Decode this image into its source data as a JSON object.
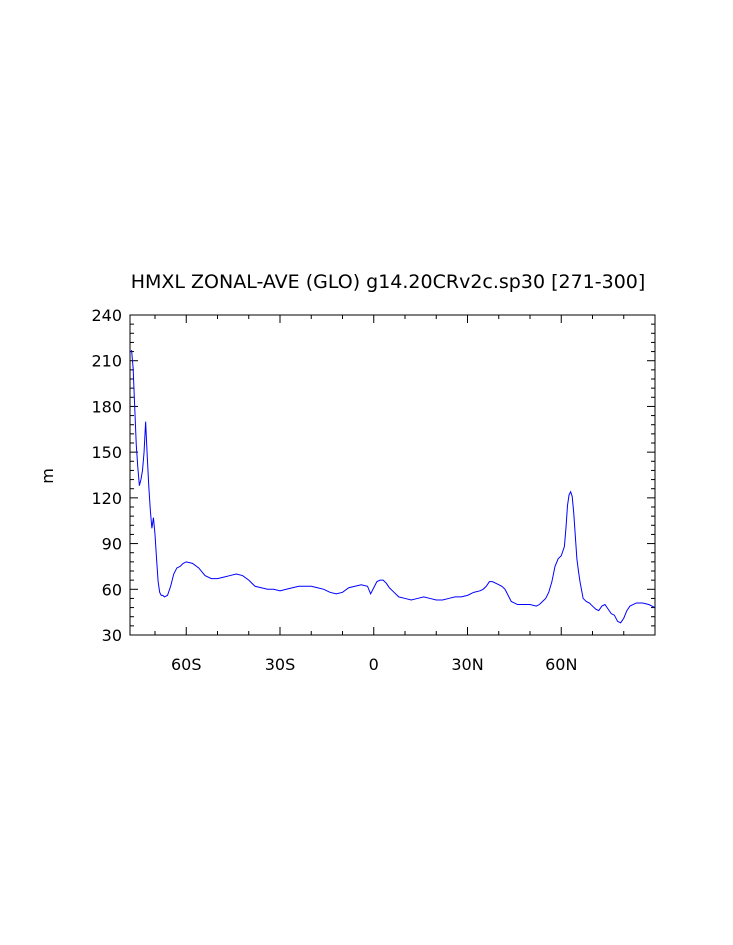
{
  "chart_data": {
    "type": "line",
    "title": "HMXL ZONAL-AVE (GLO) g14.20CRv2c.sp30 [271-300]",
    "xlabel": "",
    "ylabel": "m",
    "xlim": [
      -78,
      90
    ],
    "ylim": [
      30,
      240
    ],
    "x_ticks": [
      {
        "value": -60,
        "label": "60S"
      },
      {
        "value": -30,
        "label": "30S"
      },
      {
        "value": 0,
        "label": "0"
      },
      {
        "value": 30,
        "label": "30N"
      },
      {
        "value": 60,
        "label": "60N"
      }
    ],
    "y_ticks": [
      {
        "value": 30,
        "label": "30"
      },
      {
        "value": 60,
        "label": "60"
      },
      {
        "value": 90,
        "label": "90"
      },
      {
        "value": 120,
        "label": "120"
      },
      {
        "value": 150,
        "label": "150"
      },
      {
        "value": 180,
        "label": "180"
      },
      {
        "value": 210,
        "label": "210"
      },
      {
        "value": 240,
        "label": "240"
      }
    ],
    "grid": false,
    "line_color": "#0000ff",
    "series": [
      {
        "x": [
          -77.5,
          -77,
          -76.5,
          -76,
          -75.5,
          -75,
          -74.5,
          -74,
          -73.5,
          -73,
          -72.5,
          -72,
          -71.5,
          -71,
          -70.5,
          -70,
          -69.5,
          -69,
          -68.5,
          -68,
          -67.5,
          -67,
          -66,
          -65,
          -64,
          -63,
          -62,
          -61,
          -60,
          -58,
          -56,
          -54,
          -52,
          -50,
          -48,
          -46,
          -44,
          -42,
          -40,
          -38,
          -36,
          -34,
          -32,
          -30,
          -28,
          -26,
          -24,
          -22,
          -20,
          -18,
          -16,
          -14,
          -12,
          -10,
          -8,
          -6,
          -4,
          -2,
          -1,
          0,
          1,
          2,
          3,
          4,
          5,
          6,
          8,
          10,
          12,
          14,
          16,
          18,
          20,
          22,
          24,
          26,
          28,
          30,
          32,
          34,
          35,
          36,
          37,
          38,
          39,
          40,
          41,
          42,
          43,
          44,
          46,
          48,
          50,
          52,
          53,
          54,
          55,
          56,
          57,
          58,
          59,
          60,
          61,
          61.5,
          62,
          62.5,
          63,
          63.5,
          64,
          64.5,
          65,
          65.5,
          66,
          67,
          68,
          69,
          70,
          71,
          72,
          73,
          74,
          75,
          76,
          77,
          78,
          79,
          80,
          81,
          82,
          84,
          86,
          88,
          90
        ],
        "y": [
          217,
          205,
          180,
          155,
          140,
          128,
          132,
          138,
          150,
          170,
          148,
          128,
          112,
          100,
          107,
          96,
          80,
          65,
          58,
          56,
          56,
          55,
          56,
          62,
          70,
          74,
          75,
          77,
          78,
          77,
          74,
          69,
          67,
          67,
          68,
          69,
          70,
          69,
          66,
          62,
          61,
          60,
          60,
          59,
          60,
          61,
          62,
          62,
          62,
          61,
          60,
          58,
          57,
          58,
          61,
          62,
          63,
          62,
          57,
          61,
          65,
          66,
          66,
          64,
          61,
          59,
          55,
          54,
          53,
          54,
          55,
          54,
          53,
          53,
          54,
          55,
          55,
          56,
          58,
          59,
          60,
          62,
          65,
          65,
          64,
          63,
          62,
          60,
          56,
          52,
          50,
          50,
          50,
          49,
          50,
          52,
          54,
          58,
          65,
          75,
          80,
          82,
          88,
          100,
          115,
          122,
          124,
          121,
          110,
          95,
          80,
          72,
          65,
          54,
          52,
          51,
          49,
          47,
          46,
          49,
          50,
          47,
          44,
          43,
          39,
          38,
          41,
          46,
          49,
          51,
          51,
          50,
          48
        ]
      }
    ]
  }
}
